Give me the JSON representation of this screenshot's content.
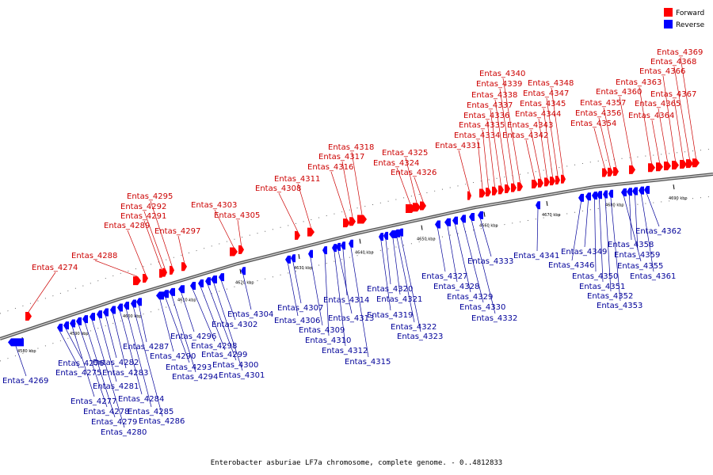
{
  "caption": "Enterobacter asburiae LF7a chromosome, complete genome. - 0..4812833",
  "legend": {
    "forward_label": "Forward",
    "reverse_label": "Reverse",
    "forward_color": "#ff0000",
    "reverse_color": "#0000ff"
  },
  "colors": {
    "forward_text": "#cc0000",
    "reverse_text": "#000099",
    "axis": "#8c8c8c"
  },
  "ticks": [
    "4580 kbp",
    "4590 kbp",
    "4600 kbp",
    "4610 kbp",
    "4620 kbp",
    "4630 kbp",
    "4640 kbp",
    "4650 kbp",
    "4660 kbp",
    "4670 kbp",
    "4680 kbp",
    "4690 kbp"
  ],
  "forward_genes": [
    "Entas_4274",
    "Entas_4288",
    "Entas_4289",
    "Entas_4291",
    "Entas_4292",
    "Entas_4295",
    "Entas_4297",
    "Entas_4303",
    "Entas_4305",
    "Entas_4308",
    "Entas_4311",
    "Entas_4316",
    "Entas_4317",
    "Entas_4318",
    "Entas_4324",
    "Entas_4325",
    "Entas_4326",
    "Entas_4331",
    "Entas_4334",
    "Entas_4335",
    "Entas_4336",
    "Entas_4337",
    "Entas_4338",
    "Entas_4339",
    "Entas_4340",
    "Entas_4342",
    "Entas_4343",
    "Entas_4344",
    "Entas_4345",
    "Entas_4347",
    "Entas_4348",
    "Entas_4354",
    "Entas_4356",
    "Entas_4357",
    "Entas_4360",
    "Entas_4363",
    "Entas_4364",
    "Entas_4365",
    "Entas_4366",
    "Entas_4367",
    "Entas_4368",
    "Entas_4369"
  ],
  "reverse_genes": [
    "Entas_4269",
    "Entas_4275",
    "Entas_4276",
    "Entas_4277",
    "Entas_4278",
    "Entas_4279",
    "Entas_4280",
    "Entas_4281",
    "Entas_4282",
    "Entas_4283",
    "Entas_4284",
    "Entas_4285",
    "Entas_4286",
    "Entas_4287",
    "Entas_4290",
    "Entas_4293",
    "Entas_4294",
    "Entas_4296",
    "Entas_4298",
    "Entas_4299",
    "Entas_4300",
    "Entas_4301",
    "Entas_4302",
    "Entas_4304",
    "Entas_4306",
    "Entas_4307",
    "Entas_4309",
    "Entas_4310",
    "Entas_4312",
    "Entas_4313",
    "Entas_4314",
    "Entas_4315",
    "Entas_4319",
    "Entas_4320",
    "Entas_4321",
    "Entas_4322",
    "Entas_4323",
    "Entas_4327",
    "Entas_4328",
    "Entas_4329",
    "Entas_4330",
    "Entas_4332",
    "Entas_4333",
    "Entas_4341",
    "Entas_4346",
    "Entas_4349",
    "Entas_4350",
    "Entas_4351",
    "Entas_4352",
    "Entas_4353",
    "Entas_4355",
    "Entas_4358",
    "Entas_4359",
    "Entas_4361",
    "Entas_4362"
  ]
}
